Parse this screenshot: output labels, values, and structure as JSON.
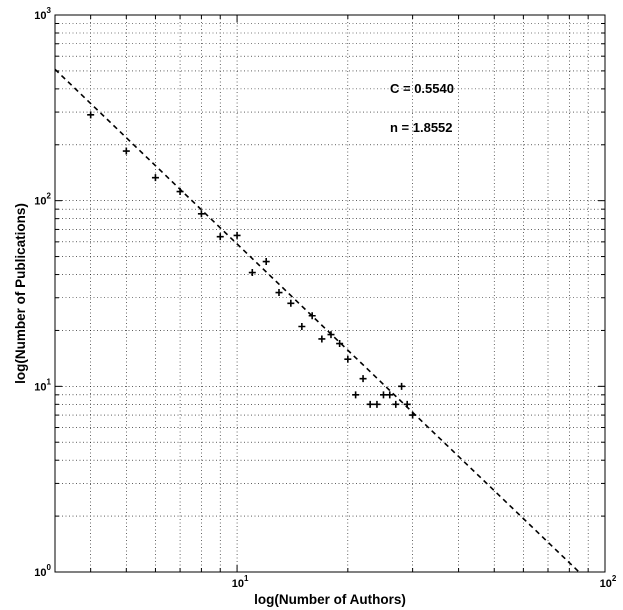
{
  "chart_data": {
    "type": "scatter",
    "xlabel": "log(Number of Authors)",
    "ylabel": "log(Number of Publications)",
    "xscale": "log",
    "yscale": "log",
    "xlim": [
      3.2,
      100
    ],
    "ylim": [
      1,
      1000
    ],
    "grid": true,
    "x_ticks": [
      {
        "base": "10",
        "exp": "1",
        "value": 10
      },
      {
        "base": "10",
        "exp": "2",
        "value": 100
      }
    ],
    "y_ticks": [
      {
        "base": "10",
        "exp": "0",
        "value": 1
      },
      {
        "base": "10",
        "exp": "1",
        "value": 10
      },
      {
        "base": "10",
        "exp": "2",
        "value": 100
      },
      {
        "base": "10",
        "exp": "3",
        "value": 1000
      }
    ],
    "annotations": [
      "C = 0.5540",
      "n = 1.8552"
    ],
    "points": [
      {
        "x": 4,
        "y": 290
      },
      {
        "x": 5,
        "y": 185
      },
      {
        "x": 6,
        "y": 133
      },
      {
        "x": 7,
        "y": 112
      },
      {
        "x": 8,
        "y": 85
      },
      {
        "x": 9,
        "y": 64
      },
      {
        "x": 10,
        "y": 65
      },
      {
        "x": 11,
        "y": 41
      },
      {
        "x": 12,
        "y": 47
      },
      {
        "x": 13,
        "y": 32
      },
      {
        "x": 14,
        "y": 28
      },
      {
        "x": 15,
        "y": 21
      },
      {
        "x": 16,
        "y": 24
      },
      {
        "x": 17,
        "y": 18
      },
      {
        "x": 18,
        "y": 19
      },
      {
        "x": 19,
        "y": 17
      },
      {
        "x": 20,
        "y": 14
      },
      {
        "x": 21,
        "y": 9
      },
      {
        "x": 22,
        "y": 11
      },
      {
        "x": 23,
        "y": 8
      },
      {
        "x": 24,
        "y": 8
      },
      {
        "x": 25,
        "y": 9
      },
      {
        "x": 26,
        "y": 9
      },
      {
        "x": 27,
        "y": 8
      },
      {
        "x": 28,
        "y": 10
      },
      {
        "x": 29,
        "y": 8
      },
      {
        "x": 30,
        "y": 7
      }
    ],
    "fit_line": {
      "style": "dashed",
      "x": [
        3.2,
        85
      ],
      "y": [
        510,
        1
      ]
    }
  }
}
